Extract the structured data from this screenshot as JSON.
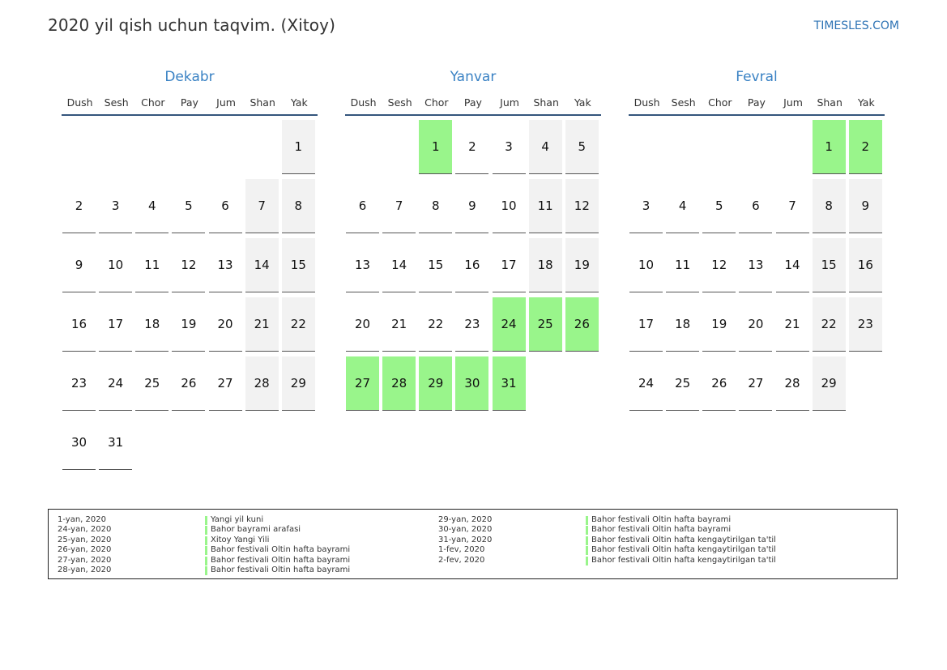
{
  "header": {
    "title": "2020 yil qish uchun taqvim. (Xitoy)",
    "brand": "TIMESLES.COM"
  },
  "colors": {
    "accent": "#3a82c4",
    "holiday": "#99f58b",
    "weekend": "#f2f2f2",
    "rule": "#34557c"
  },
  "weekdays": [
    "Dush",
    "Sesh",
    "Chor",
    "Pay",
    "Jum",
    "Shan",
    "Yak"
  ],
  "months": [
    {
      "name": "Dekabr",
      "start_weekday": 6,
      "days": 31,
      "holidays": []
    },
    {
      "name": "Yanvar",
      "start_weekday": 2,
      "days": 31,
      "holidays": [
        1,
        24,
        25,
        26,
        27,
        28,
        29,
        30,
        31
      ]
    },
    {
      "name": "Fevral",
      "start_weekday": 5,
      "days": 29,
      "holidays": [
        1,
        2
      ]
    }
  ],
  "legend": [
    [
      {
        "date": "1-yan, 2020",
        "name": "Yangi yil kuni"
      },
      {
        "date": "24-yan, 2020",
        "name": "Bahor bayrami arafasi"
      },
      {
        "date": "25-yan, 2020",
        "name": "Xitoy Yangi Yili"
      },
      {
        "date": "26-yan, 2020",
        "name": "Bahor festivali Oltin hafta bayrami"
      },
      {
        "date": "27-yan, 2020",
        "name": "Bahor festivali Oltin hafta bayrami"
      },
      {
        "date": "28-yan, 2020",
        "name": "Bahor festivali Oltin hafta bayrami"
      }
    ],
    [
      {
        "date": "29-yan, 2020",
        "name": "Bahor festivali Oltin hafta bayrami"
      },
      {
        "date": "30-yan, 2020",
        "name": "Bahor festivali Oltin hafta bayrami"
      },
      {
        "date": "31-yan, 2020",
        "name": "Bahor festivali Oltin hafta kengaytirilgan ta'til"
      },
      {
        "date": "1-fev, 2020",
        "name": "Bahor festivali Oltin hafta kengaytirilgan ta'til"
      },
      {
        "date": "2-fev, 2020",
        "name": "Bahor festivali Oltin hafta kengaytirilgan ta'til"
      }
    ]
  ]
}
